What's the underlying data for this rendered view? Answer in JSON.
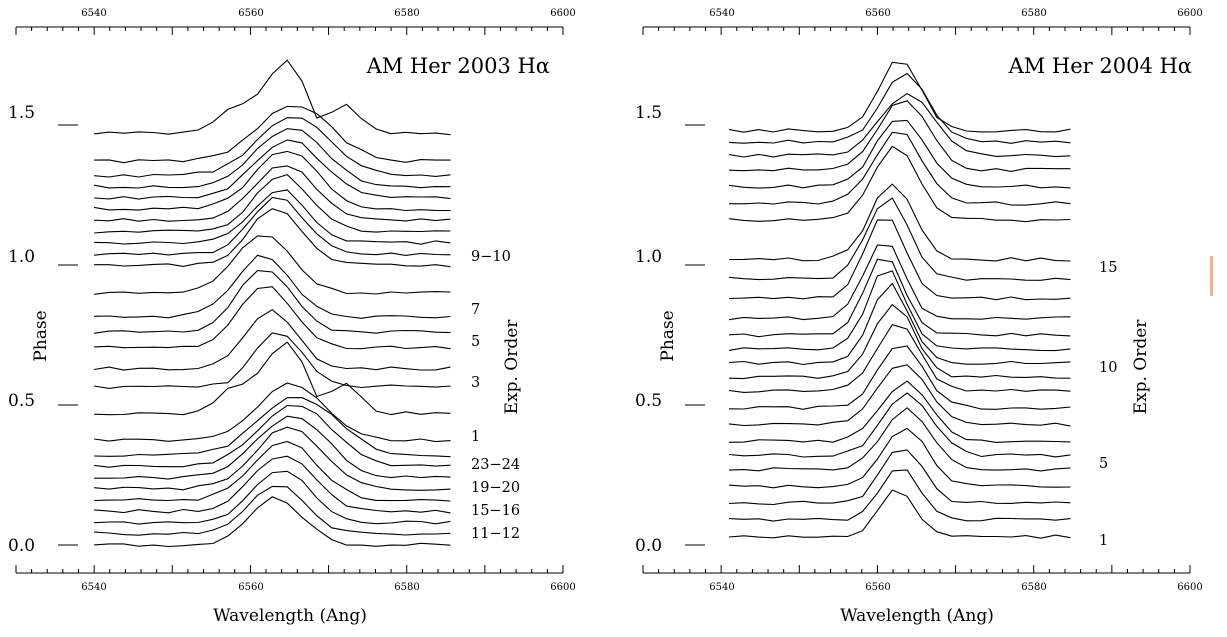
{
  "colors": {
    "line": "#000000",
    "background": "#ffffff",
    "edge_mark": "#e3b49a"
  },
  "chart_data": [
    {
      "type": "line",
      "title": "AM Her 2003 Hα",
      "xlabel": "Wavelength (Ang)",
      "ylabel": "Phase",
      "right_label": "Exp. Order",
      "xlim": [
        6530,
        6600
      ],
      "ylim": [
        -0.1,
        1.85
      ],
      "x_ticks_major": [
        6540,
        6560,
        6580,
        6600
      ],
      "x_ticks_minor_step": 2,
      "x_tick_labels": [
        "6540",
        "6560",
        "6580",
        "6600"
      ],
      "y_ticks": [
        0.0,
        0.5,
        1.0,
        1.5
      ],
      "y_tick_labels": [
        "0.0",
        "0.5",
        "1.0",
        "1.5"
      ],
      "order_labels": [
        {
          "text": "9−10",
          "phase": 1.0
        },
        {
          "text": "7",
          "phase": 0.815
        },
        {
          "text": "5",
          "phase": 0.705
        },
        {
          "text": "3",
          "phase": 0.565
        },
        {
          "text": "1",
          "phase": 0.375
        },
        {
          "text": "23−24",
          "phase": 0.28
        },
        {
          "text": "19−20",
          "phase": 0.2
        },
        {
          "text": "15−16",
          "phase": 0.12
        },
        {
          "text": "11−12",
          "phase": 0.04
        }
      ],
      "x_range": [
        6540,
        6586
      ],
      "series": [
        {
          "base": 0.0,
          "peak": 6563.2,
          "amp": 0.17,
          "width": 3.4,
          "sec": 0
        },
        {
          "base": 0.04,
          "peak": 6563.6,
          "amp": 0.18,
          "width": 3.5,
          "sec": 0
        },
        {
          "base": 0.08,
          "peak": 6563.9,
          "amp": 0.19,
          "width": 3.7,
          "sec": 0
        },
        {
          "base": 0.12,
          "peak": 6564.2,
          "amp": 0.2,
          "width": 3.9,
          "sec": 0
        },
        {
          "base": 0.16,
          "peak": 6564.5,
          "amp": 0.21,
          "width": 4.1,
          "sec": 0
        },
        {
          "base": 0.2,
          "peak": 6564.9,
          "amp": 0.22,
          "width": 4.3,
          "sec": 0
        },
        {
          "base": 0.24,
          "peak": 6565.3,
          "amp": 0.22,
          "width": 4.5,
          "sec": 0
        },
        {
          "base": 0.28,
          "peak": 6565.7,
          "amp": 0.22,
          "width": 4.7,
          "sec": 0
        },
        {
          "base": 0.32,
          "peak": 6566.1,
          "amp": 0.21,
          "width": 4.9,
          "sec": 0
        },
        {
          "base": 0.375,
          "peak": 6565.3,
          "amp": 0.2,
          "width": 4.3,
          "sec": 0
        },
        {
          "base": 0.47,
          "peak": 6564.5,
          "amp": 0.26,
          "width": 2.6,
          "sec": 1
        },
        {
          "base": 0.565,
          "peak": 6563.5,
          "amp": 0.2,
          "width": 3.0,
          "sec": 0
        },
        {
          "base": 0.63,
          "peak": 6562.6,
          "amp": 0.21,
          "width": 3.2,
          "sec": 0
        },
        {
          "base": 0.705,
          "peak": 6562.0,
          "amp": 0.22,
          "width": 3.4,
          "sec": 0
        },
        {
          "base": 0.76,
          "peak": 6561.8,
          "amp": 0.23,
          "width": 3.5,
          "sec": 0
        },
        {
          "base": 0.815,
          "peak": 6561.6,
          "amp": 0.22,
          "width": 3.5,
          "sec": 0
        },
        {
          "base": 0.9,
          "peak": 6561.7,
          "amp": 0.21,
          "width": 3.6,
          "sec": 0
        },
        {
          "base": 1.0,
          "peak": 6563.2,
          "amp": 0.2,
          "width": 3.4,
          "sec": 0
        },
        {
          "base": 1.04,
          "peak": 6563.5,
          "amp": 0.2,
          "width": 3.4,
          "sec": 0
        },
        {
          "base": 1.08,
          "peak": 6563.8,
          "amp": 0.19,
          "width": 3.5,
          "sec": 0
        },
        {
          "base": 1.12,
          "peak": 6564.1,
          "amp": 0.2,
          "width": 3.6,
          "sec": 0
        },
        {
          "base": 1.16,
          "peak": 6564.3,
          "amp": 0.2,
          "width": 3.8,
          "sec": 0
        },
        {
          "base": 1.2,
          "peak": 6564.6,
          "amp": 0.21,
          "width": 4.0,
          "sec": 0
        },
        {
          "base": 1.24,
          "peak": 6564.9,
          "amp": 0.21,
          "width": 4.2,
          "sec": 0
        },
        {
          "base": 1.28,
          "peak": 6565.2,
          "amp": 0.21,
          "width": 4.4,
          "sec": 0
        },
        {
          "base": 1.32,
          "peak": 6565.5,
          "amp": 0.21,
          "width": 4.6,
          "sec": 0
        },
        {
          "base": 1.37,
          "peak": 6565.6,
          "amp": 0.2,
          "width": 4.7,
          "sec": 0
        },
        {
          "base": 1.47,
          "peak": 6564.5,
          "amp": 0.26,
          "width": 2.6,
          "sec": 1
        }
      ]
    },
    {
      "type": "line",
      "title": "AM Her 2004 Hα",
      "xlabel": "Wavelength (Ang)",
      "ylabel": "Phase",
      "right_label": "Exp. Order",
      "xlim": [
        6530,
        6600
      ],
      "ylim": [
        -0.1,
        1.85
      ],
      "x_ticks_major": [
        6540,
        6560,
        6580,
        6600
      ],
      "x_ticks_minor_step": 2,
      "x_tick_labels": [
        "6540",
        "6560",
        "6580",
        "6600"
      ],
      "y_ticks": [
        0.0,
        0.5,
        1.0,
        1.5
      ],
      "y_tick_labels": [
        "0.0",
        "0.5",
        "1.0",
        "1.5"
      ],
      "order_labels": [
        {
          "text": "15",
          "phase": 0.965
        },
        {
          "text": "10",
          "phase": 0.615
        },
        {
          "text": "5",
          "phase": 0.29
        },
        {
          "text": "1",
          "phase": 0.02
        }
      ],
      "x_range": [
        6541,
        6586
      ],
      "series": [
        {
          "base": 0.03,
          "peak": 6562.5,
          "amp": 0.17,
          "width": 2.2,
          "sec": 0
        },
        {
          "base": 0.09,
          "peak": 6562.8,
          "amp": 0.19,
          "width": 2.4,
          "sec": 0
        },
        {
          "base": 0.15,
          "peak": 6563.2,
          "amp": 0.2,
          "width": 2.6,
          "sec": 0
        },
        {
          "base": 0.21,
          "peak": 6563.5,
          "amp": 0.21,
          "width": 2.8,
          "sec": 0
        },
        {
          "base": 0.27,
          "peak": 6563.7,
          "amp": 0.22,
          "width": 3.0,
          "sec": 0
        },
        {
          "base": 0.32,
          "peak": 6563.8,
          "amp": 0.22,
          "width": 3.1,
          "sec": 0
        },
        {
          "base": 0.37,
          "peak": 6563.6,
          "amp": 0.21,
          "width": 3.2,
          "sec": 0
        },
        {
          "base": 0.43,
          "peak": 6563.3,
          "amp": 0.22,
          "width": 3.1,
          "sec": 0
        },
        {
          "base": 0.49,
          "peak": 6563.0,
          "amp": 0.23,
          "width": 2.9,
          "sec": 0
        },
        {
          "base": 0.55,
          "peak": 6562.6,
          "amp": 0.24,
          "width": 2.8,
          "sec": 0
        },
        {
          "base": 0.6,
          "peak": 6562.1,
          "amp": 0.26,
          "width": 2.6,
          "sec": 0
        },
        {
          "base": 0.65,
          "peak": 6561.6,
          "amp": 0.28,
          "width": 2.5,
          "sec": 0
        },
        {
          "base": 0.7,
          "peak": 6561.2,
          "amp": 0.29,
          "width": 2.4,
          "sec": 0
        },
        {
          "base": 0.75,
          "peak": 6560.9,
          "amp": 0.29,
          "width": 2.4,
          "sec": 0
        },
        {
          "base": 0.81,
          "peak": 6560.8,
          "amp": 0.28,
          "width": 2.5,
          "sec": 0
        },
        {
          "base": 0.88,
          "peak": 6561.0,
          "amp": 0.3,
          "width": 2.6,
          "sec": 0
        },
        {
          "base": 0.95,
          "peak": 6561.4,
          "amp": 0.29,
          "width": 2.7,
          "sec": 0
        },
        {
          "base": 1.02,
          "peak": 6561.9,
          "amp": 0.27,
          "width": 2.8,
          "sec": 0
        },
        {
          "base": 1.16,
          "peak": 6562.3,
          "amp": 0.26,
          "width": 2.9,
          "sec": 0
        },
        {
          "base": 1.22,
          "peak": 6562.6,
          "amp": 0.26,
          "width": 3.0,
          "sec": 0
        },
        {
          "base": 1.28,
          "peak": 6562.9,
          "amp": 0.25,
          "width": 3.1,
          "sec": 0
        },
        {
          "base": 1.34,
          "peak": 6563.3,
          "amp": 0.25,
          "width": 3.2,
          "sec": 0
        },
        {
          "base": 1.39,
          "peak": 6563.8,
          "amp": 0.22,
          "width": 3.4,
          "sec": 0
        },
        {
          "base": 1.44,
          "peak": 6563.5,
          "amp": 0.24,
          "width": 3.0,
          "sec": 0
        },
        {
          "base": 1.48,
          "peak": 6562.8,
          "amp": 0.26,
          "width": 2.6,
          "sec": 0
        }
      ]
    }
  ]
}
